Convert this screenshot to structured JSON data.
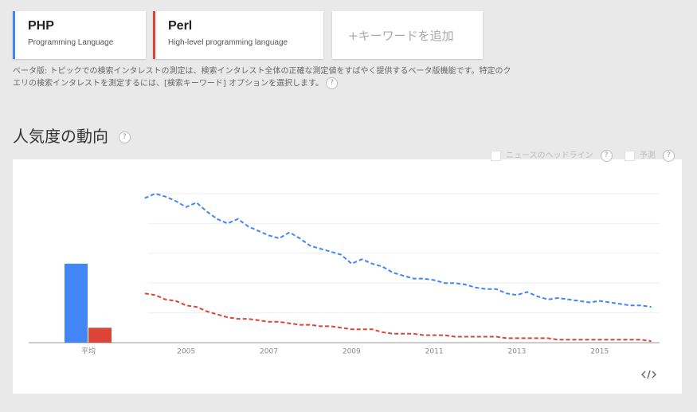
{
  "terms": [
    {
      "name": "PHP",
      "subtitle": "Programming Language"
    },
    {
      "name": "Perl",
      "subtitle": "High-level programming language"
    }
  ],
  "add_keyword": "+キーワードを追加",
  "note": [
    "ベータ版: トピックでの検索インタレストの測定は、検索インタレスト全体の正確な測定値をすばやく提供するベータ版機能です。特定のク",
    "エリの検索インタレストを測定するには、[検索キーワード] オプションを選択します。"
  ],
  "help_icon": "?",
  "section_title": "人気度の動向",
  "options": [
    "ニュースのヘッドライン",
    "予測"
  ],
  "chart_data": {
    "type": "line",
    "average_label": "平均",
    "x": [
      2004,
      2004.25,
      2004.5,
      2004.75,
      2005,
      2005.25,
      2005.5,
      2005.75,
      2006,
      2006.25,
      2006.5,
      2006.75,
      2007,
      2007.25,
      2007.5,
      2007.75,
      2008,
      2008.25,
      2008.5,
      2008.75,
      2009,
      2009.25,
      2009.5,
      2009.75,
      2010,
      2010.25,
      2010.5,
      2010.75,
      2011,
      2011.25,
      2011.5,
      2011.75,
      2012,
      2012.25,
      2012.5,
      2012.75,
      2013,
      2013.25,
      2013.5,
      2013.75,
      2014,
      2014.25,
      2014.5,
      2014.75,
      2015,
      2015.25,
      2015.5,
      2015.75,
      2016,
      2016.25
    ],
    "series": [
      {
        "name": "PHP",
        "color": "#4285f4",
        "average": 53,
        "values": [
          97,
          100,
          98,
          95,
          91,
          94,
          88,
          83,
          80,
          83,
          78,
          75,
          72,
          70,
          74,
          70,
          65,
          63,
          61,
          59,
          53,
          56,
          53,
          51,
          47,
          45,
          43,
          43,
          42,
          40,
          40,
          39,
          37,
          36,
          36,
          33,
          32,
          34,
          31,
          29,
          30,
          29,
          28,
          27,
          28,
          27,
          26,
          25,
          25,
          24
        ]
      },
      {
        "name": "Perl",
        "color": "#db4437",
        "average": 10,
        "values": [
          33,
          32,
          29,
          28,
          25,
          24,
          21,
          19,
          17,
          16,
          16,
          15,
          14,
          14,
          13,
          12,
          12,
          11,
          11,
          10,
          9,
          9,
          9,
          7,
          6,
          6,
          6,
          5,
          5,
          5,
          4,
          4,
          4,
          4,
          4,
          3,
          3,
          3,
          3,
          3,
          2,
          2,
          2,
          2,
          2,
          2,
          2,
          2,
          2,
          1
        ]
      }
    ],
    "xlim": [
      2003.85,
      2016.45
    ],
    "xticks": [
      2005,
      2007,
      2009,
      2011,
      2013,
      2015
    ],
    "ylim": [
      0,
      100
    ],
    "yticks": [
      0,
      20,
      40,
      60,
      80,
      100
    ],
    "grid": true,
    "dashed": true
  }
}
